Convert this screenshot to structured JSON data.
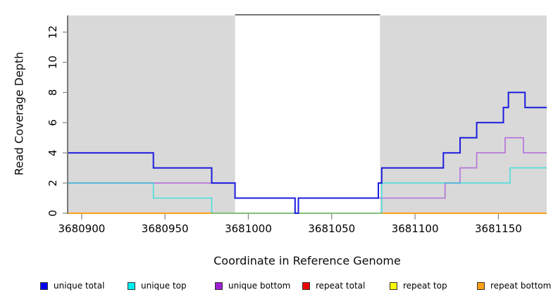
{
  "chart_data": {
    "type": "line",
    "step_mode": "after",
    "title": "",
    "xlabel": "Coordinate in Reference Genome",
    "ylabel": "Read Coverage Depth",
    "xlim": [
      3680892,
      3681179
    ],
    "ylim": [
      0,
      13.1
    ],
    "x_ticks": [
      3680900,
      3680950,
      3681000,
      3681050,
      3681100,
      3681150
    ],
    "y_ticks": [
      0,
      2,
      4,
      6,
      8,
      10,
      12
    ],
    "grid": false,
    "legend_position": "bottom",
    "plot_bg": "#ffffff",
    "shaded_regions": [
      {
        "x1": 3680892,
        "x2": 3680992,
        "color": "#d9d9d9"
      },
      {
        "x1": 3681079,
        "x2": 3681179,
        "color": "#d9d9d9"
      }
    ],
    "gap_top_line": {
      "x1": 3680992,
      "x2": 3681079,
      "color": "#757575"
    },
    "series": [
      {
        "name": "repeat total",
        "color": "#e00000",
        "width": 1.6,
        "points": [
          [
            3680892,
            0
          ],
          [
            3681179,
            0
          ]
        ]
      },
      {
        "name": "repeat top",
        "color": "#f5f500",
        "width": 1.6,
        "points": [
          [
            3680892,
            0
          ],
          [
            3681179,
            0
          ]
        ]
      },
      {
        "name": "repeat bottom",
        "color": "#ff9d17",
        "width": 1.8,
        "points": [
          [
            3680892,
            0
          ],
          [
            3681179,
            0
          ]
        ]
      },
      {
        "name": "unique bottom",
        "color": "#b46fdb",
        "width": 1.6,
        "points": [
          [
            3680892,
            2
          ],
          [
            3680992,
            1
          ],
          [
            3681028,
            0
          ],
          [
            3681030,
            1
          ],
          [
            3681118,
            2
          ],
          [
            3681127,
            3
          ],
          [
            3681137,
            4
          ],
          [
            3681154,
            5
          ],
          [
            3681165,
            4
          ],
          [
            3681179,
            4
          ]
        ]
      },
      {
        "name": "unique top",
        "color": "#00dede",
        "width": 1.6,
        "opacity": 0.65,
        "points": [
          [
            3680892,
            2
          ],
          [
            3680943,
            1
          ],
          [
            3680978,
            0
          ],
          [
            3681080,
            2
          ],
          [
            3681157,
            3
          ],
          [
            3681179,
            3
          ]
        ]
      },
      {
        "name": "unique total",
        "color": "#1c1cdf",
        "width": 2,
        "points": [
          [
            3680892,
            4
          ],
          [
            3680943,
            3
          ],
          [
            3680978,
            2
          ],
          [
            3680992,
            1
          ],
          [
            3681028,
            0
          ],
          [
            3681030,
            1
          ],
          [
            3681078,
            2
          ],
          [
            3681080,
            3
          ],
          [
            3681117,
            4
          ],
          [
            3681127,
            5
          ],
          [
            3681137,
            6
          ],
          [
            3681153,
            7
          ],
          [
            3681156,
            8
          ],
          [
            3681166,
            7
          ],
          [
            3681179,
            7
          ]
        ]
      }
    ],
    "legend": [
      {
        "label": "unique total",
        "color": "#0000f0"
      },
      {
        "label": "unique top",
        "color": "#00eeee"
      },
      {
        "label": "unique bottom",
        "color": "#a01fd2"
      },
      {
        "label": "repeat total",
        "color": "#ee0000"
      },
      {
        "label": "repeat top",
        "color": "#fafa00"
      },
      {
        "label": "repeat bottom",
        "color": "#ffa014"
      }
    ]
  }
}
